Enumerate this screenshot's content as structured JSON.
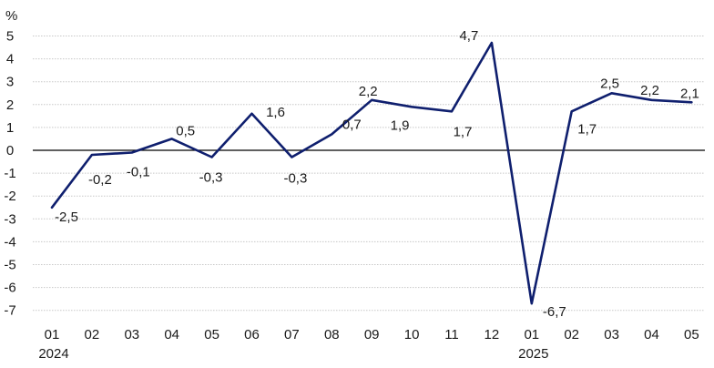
{
  "chart_data": {
    "type": "line",
    "unit_label": "%",
    "ylim": [
      -7,
      5
    ],
    "yticks": [
      5,
      4,
      3,
      2,
      1,
      0,
      -1,
      -2,
      -3,
      -4,
      -5,
      -6,
      -7
    ],
    "grid": true,
    "x_tick_labels": [
      "01",
      "02",
      "03",
      "04",
      "05",
      "06",
      "07",
      "08",
      "09",
      "10",
      "11",
      "12",
      "01",
      "02",
      "03",
      "04",
      "05"
    ],
    "year_labels": [
      {
        "at_index": 0,
        "text": "2024"
      },
      {
        "at_index": 12,
        "text": "2025"
      }
    ],
    "series": [
      {
        "color": "#0f1f6e",
        "points": [
          {
            "x": 0,
            "y": -2.5
          },
          {
            "x": 1,
            "y": -0.2
          },
          {
            "x": 2,
            "y": -0.1
          },
          {
            "x": 3,
            "y": 0.5
          },
          {
            "x": 4,
            "y": -0.3
          },
          {
            "x": 5,
            "y": 1.6
          },
          {
            "x": 6,
            "y": -0.3
          },
          {
            "x": 7,
            "y": 0.7
          },
          {
            "x": 8,
            "y": 2.2
          },
          {
            "x": 9,
            "y": 1.9
          },
          {
            "x": 10,
            "y": 1.7
          },
          {
            "x": 11,
            "y": 4.7
          },
          {
            "x": 12,
            "y": -6.7
          },
          {
            "x": 13,
            "y": 1.7
          },
          {
            "x": 14,
            "y": 2.5
          },
          {
            "x": 15,
            "y": 2.2
          },
          {
            "x": 16,
            "y": 2.1
          }
        ]
      }
    ],
    "data_labels": [
      "-2,5",
      "-0,2",
      "-0,1",
      "0,5",
      "-0,3",
      "1,6",
      "-0,3",
      "0,7",
      "2,2",
      "1,9",
      "1,7",
      "4,7",
      "-6,7",
      "1,7",
      "2,5",
      "2,2",
      "2,1"
    ]
  }
}
